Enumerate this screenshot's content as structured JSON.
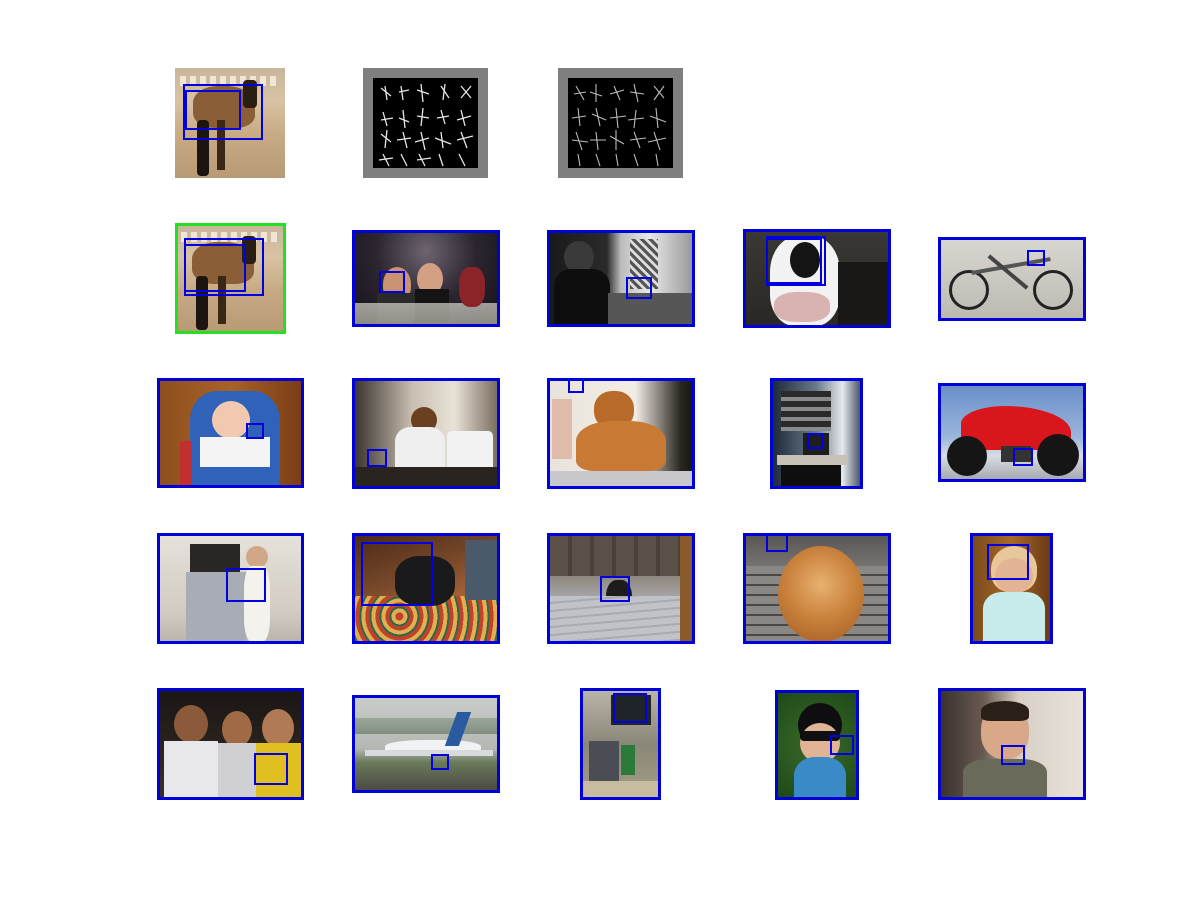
{
  "colors": {
    "detection_frame": "#0000d8",
    "query_frame": "#22e022",
    "bounding_box": "#0000e0",
    "hog_border": "#7f7f7f",
    "hog_background": "#000000",
    "hog_strokes": "#ffffff"
  },
  "rows": [
    {
      "row": 1,
      "items": [
        "horse-exemplar",
        "hog-template-1",
        "hog-template-2"
      ]
    },
    {
      "row": 2,
      "items": [
        "horse-query",
        "dinner-party",
        "woman-in-room",
        "cow-face",
        "bicycle"
      ]
    },
    {
      "row": 3,
      "items": [
        "baby-in-highchair",
        "boy-at-computer",
        "golden-retriever",
        "computer-desk",
        "red-motorcycle"
      ]
    },
    {
      "row": 4,
      "items": [
        "child-at-fridge",
        "dog-on-rug",
        "dog-in-hallway",
        "pomeranian",
        "woman-portrait"
      ]
    },
    {
      "row": 5,
      "items": [
        "three-men",
        "airplane",
        "outdoor-junk",
        "woman-sunglasses",
        "man-portrait"
      ]
    }
  ]
}
